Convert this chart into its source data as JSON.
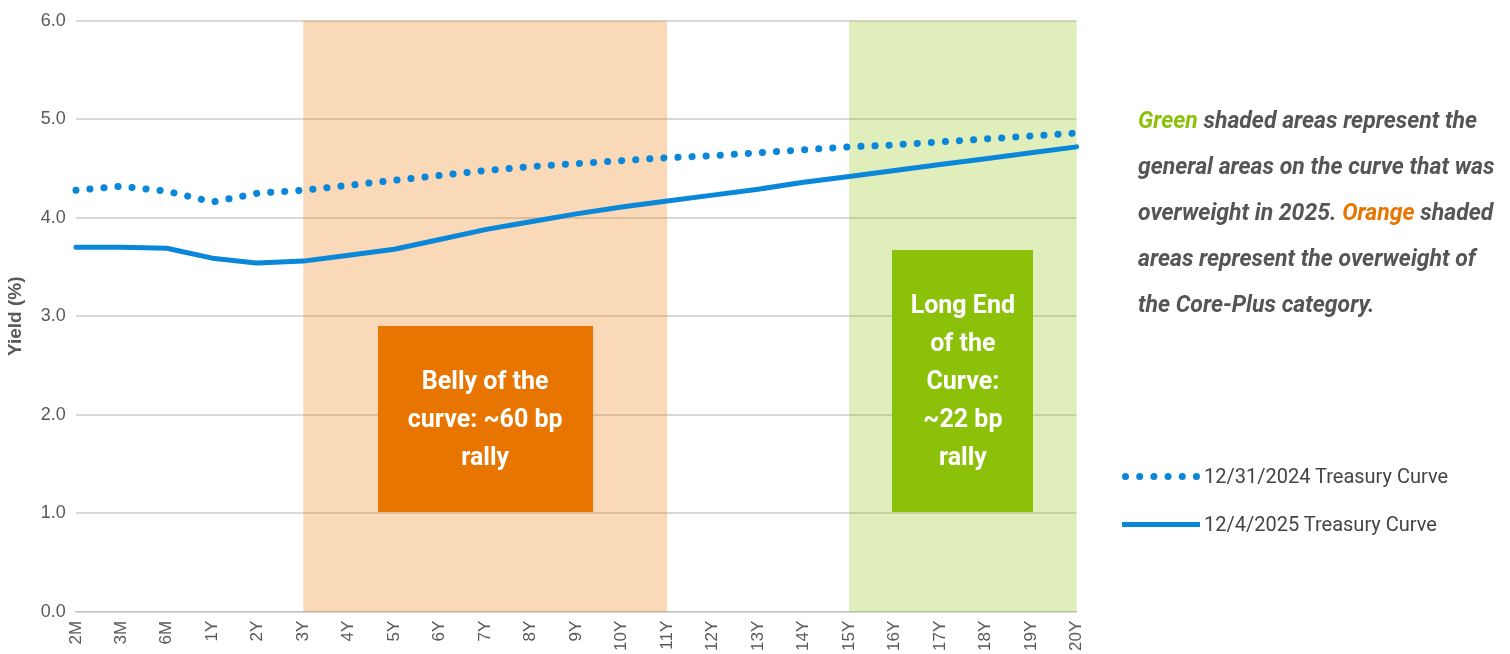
{
  "chart_data": {
    "type": "line",
    "ylabel": "Yield (%)",
    "categories": [
      "2M",
      "3M",
      "6M",
      "1Y",
      "2Y",
      "3Y",
      "4Y",
      "5Y",
      "6Y",
      "7Y",
      "8Y",
      "9Y",
      "10Y",
      "11Y",
      "12Y",
      "13Y",
      "14Y",
      "15Y",
      "16Y",
      "17Y",
      "18Y",
      "19Y",
      "20Y"
    ],
    "series": [
      {
        "name": "12/31/2024 Treasury Curve",
        "color": "#0a87d8",
        "line_style": "dotted",
        "values": [
          4.28,
          4.32,
          4.27,
          4.16,
          4.25,
          4.28,
          4.33,
          4.38,
          4.43,
          4.48,
          4.52,
          4.55,
          4.58,
          4.61,
          4.63,
          4.66,
          4.69,
          4.72,
          4.74,
          4.77,
          4.8,
          4.83,
          4.86
        ]
      },
      {
        "name": "12/4/2025 Treasury Curve",
        "color": "#0a87d8",
        "line_style": "solid",
        "values": [
          3.7,
          3.7,
          3.69,
          3.59,
          3.54,
          3.56,
          3.62,
          3.68,
          3.78,
          3.88,
          3.96,
          4.04,
          4.11,
          4.17,
          4.23,
          4.29,
          4.36,
          4.42,
          4.48,
          4.54,
          4.6,
          4.66,
          4.72
        ]
      }
    ],
    "ylim": [
      0,
      6
    ],
    "yticks": [
      {
        "value": 0,
        "label": "0.0"
      },
      {
        "value": 1,
        "label": "1.0"
      },
      {
        "value": 2,
        "label": "2.0"
      },
      {
        "value": 3,
        "label": "3.0"
      },
      {
        "value": 4,
        "label": "4.0"
      },
      {
        "value": 5,
        "label": "5.0"
      },
      {
        "value": 6,
        "label": "6.0"
      }
    ],
    "grid": "y",
    "legend": "right",
    "marker": "none",
    "bands": [
      {
        "axis": "x",
        "from": "3Y",
        "to": "11Y",
        "label": "Belly of the curve: ~60 bp rally",
        "color": "#e87500"
      },
      {
        "axis": "x",
        "from": "15Y",
        "to": "20Y",
        "label": "Long End of the Curve: ~22 bp rally",
        "color": "#8cc10a"
      }
    ],
    "annotations": [
      "Green shaded areas represent the general areas on the curve that was overweight in 2025.",
      "Orange shaded areas represent the overweight of the Core-Plus category."
    ]
  }
}
